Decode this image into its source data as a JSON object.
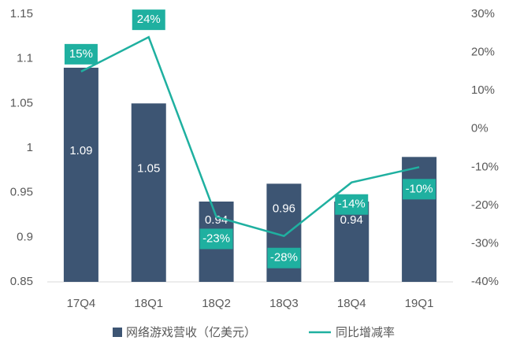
{
  "chart_data": {
    "type": "bar-line",
    "categories": [
      "17Q4",
      "18Q1",
      "18Q2",
      "18Q3",
      "18Q4",
      "19Q1"
    ],
    "series": [
      {
        "name": "网络游戏营收（亿美元）",
        "color": "#3d5573",
        "type": "bar",
        "values": [
          1.09,
          1.05,
          0.94,
          0.96,
          0.94,
          0.99
        ]
      },
      {
        "name": "同比增减率",
        "color": "#1fb0a0",
        "type": "line",
        "axis": "y2",
        "values": [
          15,
          24,
          -23,
          -28,
          -14,
          -10
        ],
        "value_labels": [
          "15%",
          "24%",
          "-23%",
          "-28%",
          "-14%",
          "-10%"
        ]
      }
    ],
    "ylim": [
      0.85,
      1.15
    ],
    "yticks": [
      0.85,
      0.9,
      0.95,
      1,
      1.05,
      1.1,
      1.15
    ],
    "y2lim": [
      -40,
      30
    ],
    "y2ticks": [
      {
        "value": -40,
        "label": "-40%"
      },
      {
        "value": -30,
        "label": "-30%"
      },
      {
        "value": -20,
        "label": "-20%"
      },
      {
        "value": -10,
        "label": "-10%"
      },
      {
        "value": 0,
        "label": "0%"
      },
      {
        "value": 10,
        "label": "10%"
      },
      {
        "value": 20,
        "label": "20%"
      },
      {
        "value": 30,
        "label": "30%"
      }
    ]
  }
}
